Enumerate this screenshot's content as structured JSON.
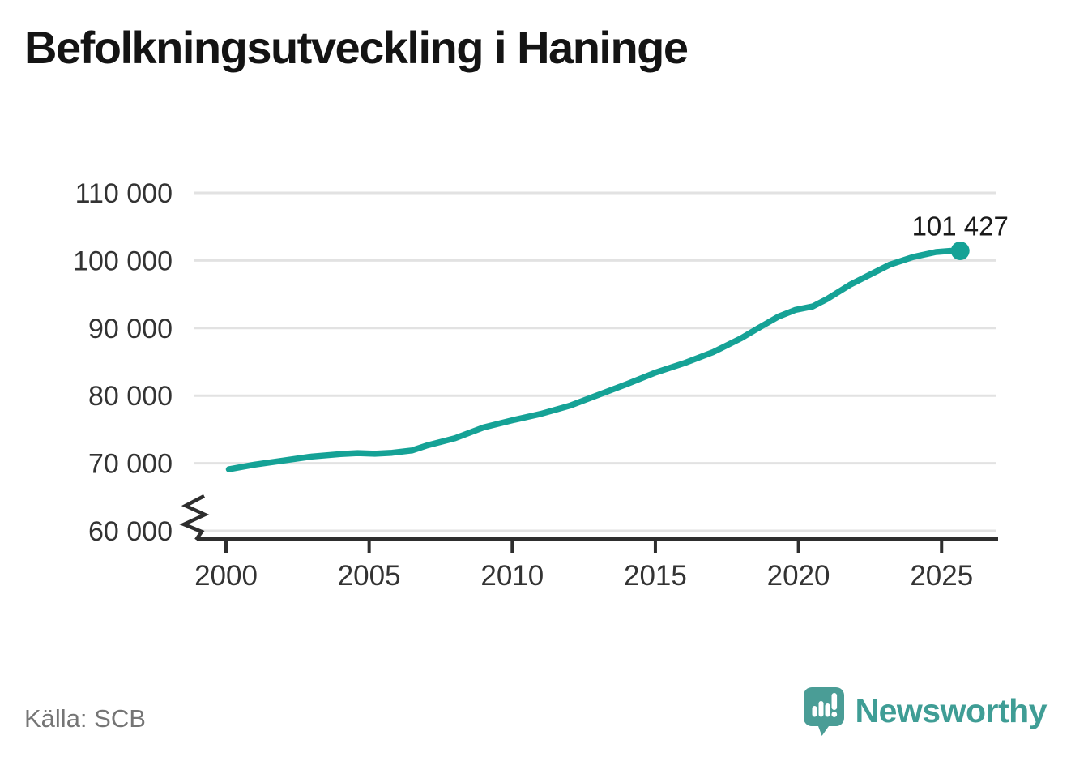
{
  "title": "Befolkningsutveckling i Haninge",
  "source": "Källa: SCB",
  "branding": {
    "name": "Newsworthy",
    "logo_icon": "bar-chart-speech-bubble-icon"
  },
  "colors": {
    "line": "#15a296",
    "endpoint_dot": "#15a296",
    "logo_teal": "#4a9d96",
    "grid": "#e2e2e2",
    "axis": "#2e2e2e",
    "tick_text": "#333333",
    "label_text": "#1a1a1a",
    "muted_text": "#757575",
    "title_text": "#141414"
  },
  "chart_data": {
    "type": "line",
    "title": "Befolkningsutveckling i Haninge",
    "source": "SCB",
    "legend": "none",
    "grid": "horizontal",
    "axis_break_bottom_left": true,
    "xlim": [
      1998.9,
      2026.9
    ],
    "ylim": [
      60000,
      110000
    ],
    "x_ticks": {
      "values": [
        2000,
        2005,
        2010,
        2015,
        2020,
        2025
      ],
      "labels": [
        "2000",
        "2005",
        "2010",
        "2015",
        "2020",
        "2025"
      ]
    },
    "y_ticks": {
      "values": [
        60000,
        70000,
        80000,
        90000,
        100000,
        110000
      ],
      "labels": [
        "60 000",
        "70 000",
        "80 000",
        "90 000",
        "100 000",
        "110 000"
      ]
    },
    "series": [
      {
        "name": "Befolkning i Haninge",
        "x": [
          2000.1,
          2001,
          2002,
          2003,
          2004,
          2004.6,
          2005.2,
          2005.8,
          2006.5,
          2007,
          2008,
          2009,
          2010,
          2011,
          2012,
          2013,
          2014,
          2015,
          2016,
          2017,
          2018,
          2018.6,
          2019.3,
          2019.9,
          2020.5,
          2021,
          2021.8,
          2022.5,
          2023.2,
          2024,
          2024.8,
          2025.3,
          2025.65
        ],
        "values": [
          69100,
          69800,
          70400,
          71000,
          71350,
          71500,
          71400,
          71550,
          71900,
          72600,
          73700,
          75300,
          76350,
          77300,
          78500,
          80100,
          81700,
          83400,
          84800,
          86400,
          88500,
          90000,
          91700,
          92700,
          93200,
          94300,
          96400,
          97900,
          99400,
          100500,
          101250,
          101420,
          101427
        ]
      }
    ],
    "end_point": {
      "x": 2025.65,
      "value": 101427,
      "label": "101 427"
    }
  }
}
